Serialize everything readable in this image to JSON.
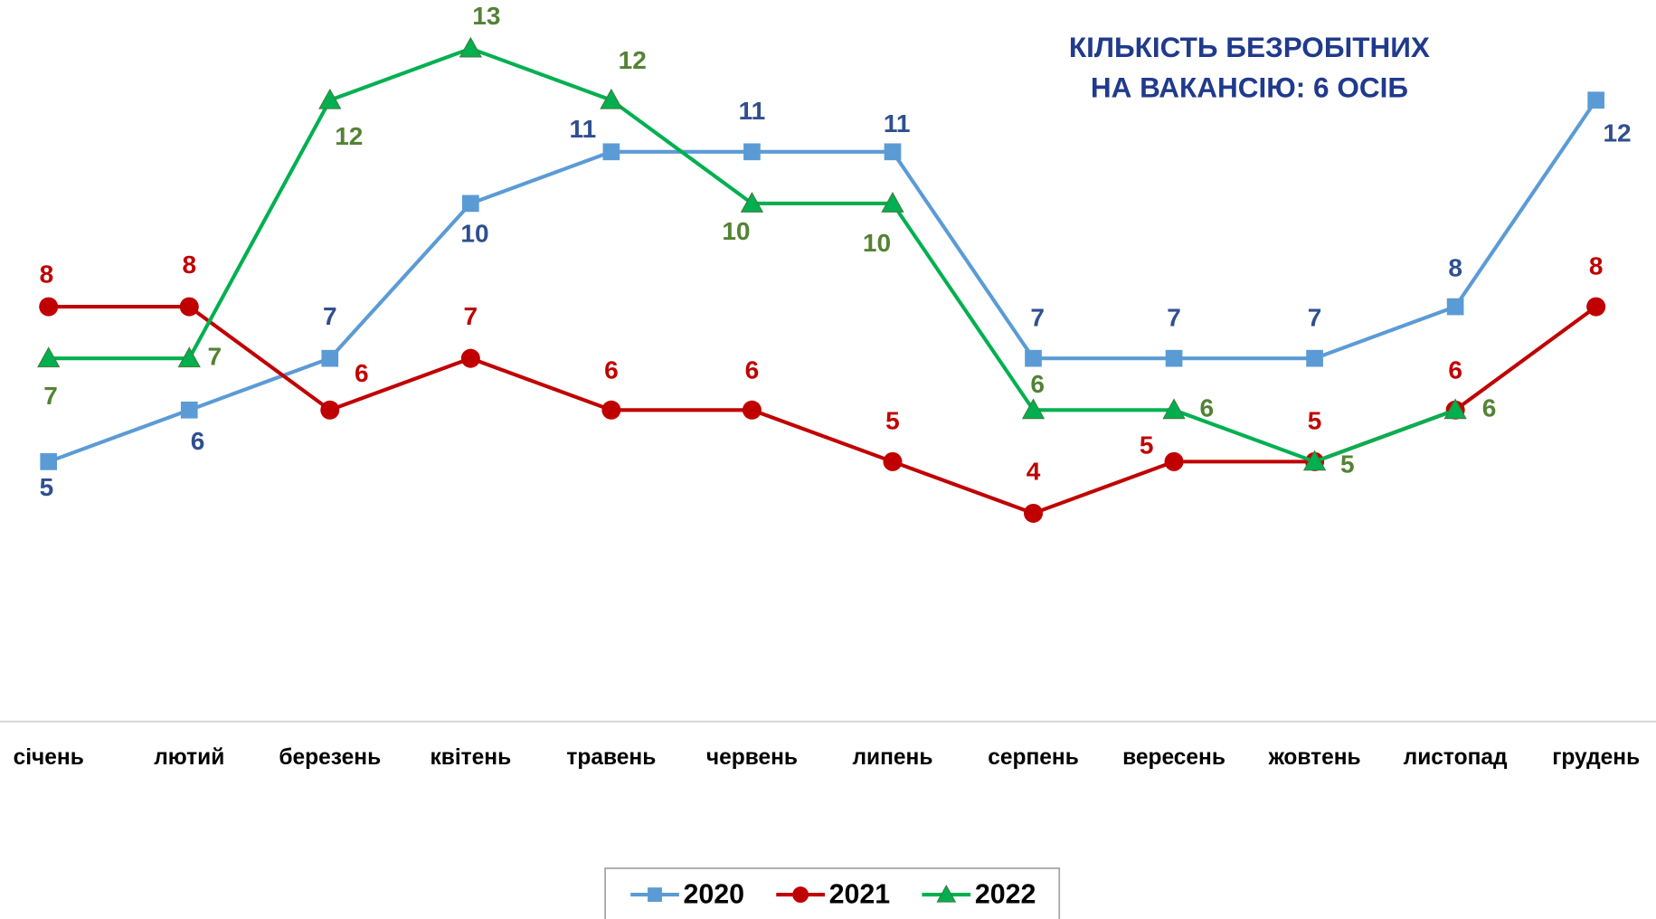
{
  "chart_data": {
    "type": "line",
    "title": [
      "КІЛЬКІСТЬ БЕЗРОБІТНИХ",
      "НА  ВАКАНСІЮ: 6 ОСІБ"
    ],
    "categories": [
      "січень",
      "лютий",
      "березень",
      "квітень",
      "травень",
      "червень",
      "липень",
      "серпень",
      "вересень",
      "жовтень",
      "листопад",
      "грудень"
    ],
    "series": [
      {
        "name": "2020",
        "color": "#5b9bd5",
        "label_color": "#2f4f8f",
        "marker": "square",
        "values": [
          5,
          6,
          7,
          10,
          11,
          11,
          11,
          7,
          7,
          7,
          8,
          12
        ]
      },
      {
        "name": "2021",
        "color": "#c00000",
        "label_color": "#c00000",
        "marker": "circle",
        "values": [
          8,
          8,
          6,
          7,
          6,
          6,
          5,
          4,
          5,
          5,
          6,
          8
        ]
      },
      {
        "name": "2022",
        "color": "#00b050",
        "label_color": "#548235",
        "marker": "triangle",
        "values": [
          7,
          7,
          12,
          13,
          12,
          10,
          10,
          6,
          6,
          5,
          6,
          null
        ]
      }
    ],
    "ylim": [
      0,
      14
    ],
    "legend": "bottom"
  }
}
